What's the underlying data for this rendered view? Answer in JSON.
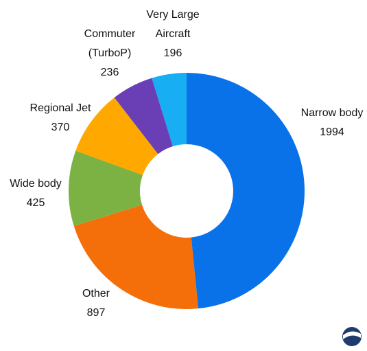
{
  "chart_data": {
    "type": "donut",
    "categories": [
      "Narrow body",
      "Other",
      "Wide body",
      "Regional Jet",
      "Commuter\n(TurboP)",
      "Very Large\nAircraft"
    ],
    "values": [
      1994,
      897,
      425,
      370,
      236,
      196
    ],
    "colors": [
      "#0a72e9",
      "#f46f0a",
      "#7cb243",
      "#ffa800",
      "#6a3fb6",
      "#17aef4"
    ]
  }
}
